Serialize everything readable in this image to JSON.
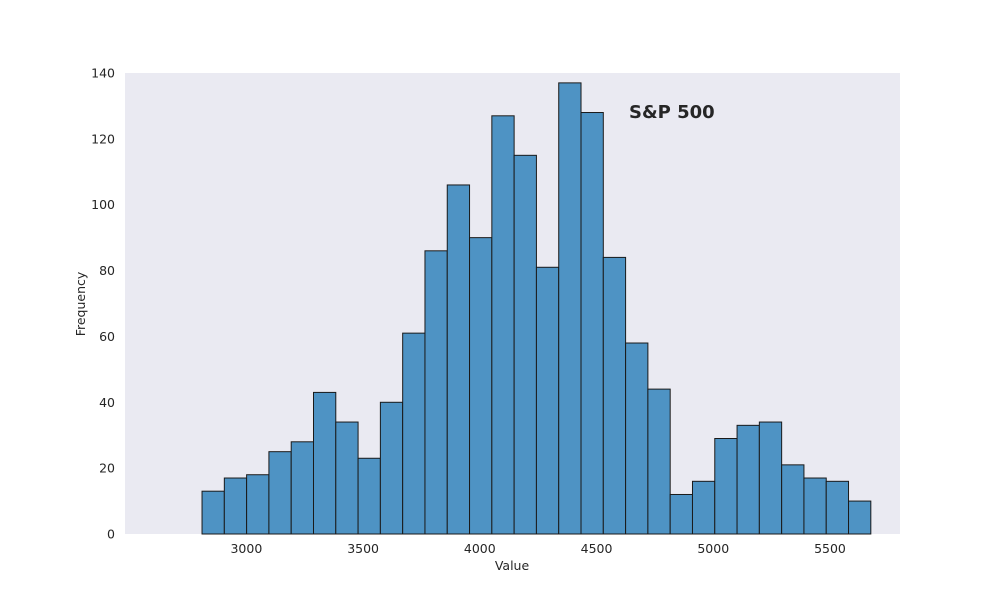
{
  "chart_data": {
    "type": "bar",
    "subtype": "histogram",
    "title": "S&P 500",
    "title_placement": "inside-top-right",
    "xlabel": "Value",
    "ylabel": "Frequency",
    "bin_start": 2810,
    "bin_width": 95.5,
    "values": [
      13,
      17,
      18,
      25,
      28,
      43,
      34,
      23,
      40,
      61,
      86,
      106,
      90,
      127,
      115,
      81,
      137,
      128,
      84,
      58,
      44,
      12,
      16,
      29,
      33,
      34,
      21,
      17,
      16,
      10
    ],
    "xlim": [
      2480,
      5800
    ],
    "ylim": [
      0,
      140
    ],
    "xticks": [
      3000,
      3500,
      4000,
      4500,
      5000,
      5500
    ],
    "yticks": [
      0,
      20,
      40,
      60,
      80,
      100,
      120,
      140
    ],
    "grid": false,
    "colors": {
      "background": "#eaeaf2",
      "bar_fill": "#4e93c4",
      "bar_edge": "#1a1a1a",
      "text": "#262626"
    }
  }
}
